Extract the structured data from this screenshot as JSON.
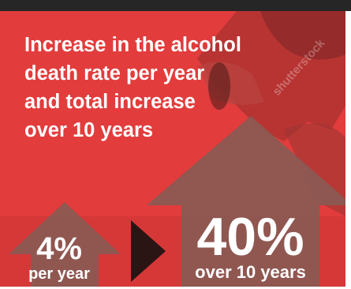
{
  "headline": {
    "line1": "Increase in the alcohol",
    "line2": "death rate per year",
    "line3": "and total increase",
    "line4": "over 10 years"
  },
  "stats": {
    "per_year": {
      "value": "4%",
      "caption": "per year"
    },
    "ten_year": {
      "value": "40%",
      "caption": "over 10 years"
    }
  },
  "watermark": "shutterstock",
  "colors": {
    "background_red": "#e23c3c",
    "arrow_gray": "#8a5a54",
    "play_marker": "#2a1414",
    "top_bar": "#262626",
    "text": "#ffffff"
  }
}
